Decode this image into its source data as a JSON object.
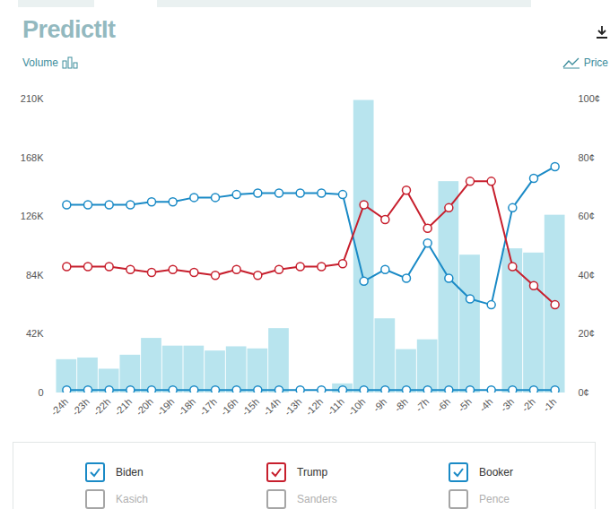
{
  "chart_data": {
    "type": "combo",
    "title": "PredictIt",
    "y2label": "Price",
    "categories": [
      "-24h",
      "-23h",
      "-22h",
      "-21h",
      "-20h",
      "-19h",
      "-18h",
      "-17h",
      "-16h",
      "-15h",
      "-14h",
      "-13h",
      "-12h",
      "-11h",
      "-10h",
      "-9h",
      "-8h",
      "-7h",
      "-6h",
      "-5h",
      "-4h",
      "-3h",
      "-2h",
      "-1h"
    ],
    "series": [
      {
        "name": "Volume",
        "type": "bar",
        "color": "#b8e4ee",
        "values": [
          23800,
          25000,
          17000,
          27000,
          39000,
          33500,
          33500,
          30000,
          33000,
          31500,
          46000,
          0,
          0,
          6500,
          209000,
          53000,
          31000,
          38000,
          151000,
          98500,
          0,
          103000,
          100000,
          127000
        ]
      },
      {
        "name": "Biden",
        "type": "line",
        "axis": "y2",
        "color": "#1a8ac6",
        "marker": "circle",
        "values": [
          64,
          64,
          64,
          64,
          65,
          65,
          66.5,
          66.5,
          67.5,
          68,
          68,
          68,
          68,
          67.5,
          38,
          42,
          39,
          51,
          39,
          32,
          30,
          63,
          73,
          77
        ]
      },
      {
        "name": "Trump",
        "type": "line",
        "axis": "y2",
        "color": "#c71f2d",
        "marker": "circle",
        "values": [
          43,
          43,
          43,
          42,
          41,
          42,
          41,
          40,
          42,
          40,
          42,
          43,
          43,
          44,
          64,
          59,
          69,
          56,
          63,
          72,
          72,
          43,
          36.5,
          30
        ]
      },
      {
        "name": "Booker",
        "type": "line",
        "axis": "y2",
        "color": "#1a8ac6",
        "marker": "circle",
        "values": [
          1,
          1,
          1,
          1,
          1,
          1,
          1,
          1,
          1,
          1,
          1,
          1,
          1,
          1,
          1,
          1,
          1,
          1,
          1,
          1,
          1,
          1,
          1,
          1
        ]
      },
      {
        "name": "Kasich",
        "type": "line",
        "axis": "y2",
        "color": "#a6a6a6",
        "marker": "circle",
        "values": [
          null,
          null,
          null,
          null,
          null,
          null,
          null,
          null,
          null,
          null,
          null,
          null,
          null,
          null,
          null,
          null,
          null,
          null,
          null,
          null,
          null,
          null,
          null,
          null
        ]
      },
      {
        "name": "Sanders",
        "type": "line",
        "axis": "y2",
        "color": "#a6a6a6",
        "marker": "circle",
        "values": [
          null,
          null,
          null,
          null,
          null,
          null,
          null,
          null,
          null,
          null,
          null,
          null,
          null,
          null,
          null,
          null,
          null,
          null,
          null,
          null,
          null,
          null,
          null,
          null
        ]
      },
      {
        "name": "Pence",
        "type": "line",
        "axis": "y2",
        "color": "#a6a6a6",
        "marker": "circle",
        "values": [
          null,
          null,
          null,
          null,
          null,
          null,
          null,
          null,
          null,
          null,
          null,
          null,
          null,
          null,
          null,
          null,
          null,
          null,
          null,
          null,
          null,
          null,
          null,
          null
        ]
      }
    ],
    "ylim": [
      0,
      210000
    ],
    "yticks": [
      0,
      {
        "value": 42000,
        "label": "42K"
      },
      {
        "value": 84000,
        "label": "84K"
      },
      {
        "value": 126000,
        "label": "126K"
      },
      {
        "value": 168000,
        "label": "168K"
      },
      {
        "value": 210000,
        "label": "210K"
      }
    ],
    "y2lim": [
      0,
      100
    ],
    "y2ticks": [
      {
        "value": 0,
        "label": "0¢"
      },
      {
        "value": 20,
        "label": "20¢"
      },
      {
        "value": 40,
        "label": "40¢"
      },
      {
        "value": 60,
        "label": "60¢"
      },
      {
        "value": 80,
        "label": "80¢"
      },
      {
        "value": 100,
        "label": "100¢"
      }
    ],
    "grid": false,
    "legend": "bottom"
  }
}
